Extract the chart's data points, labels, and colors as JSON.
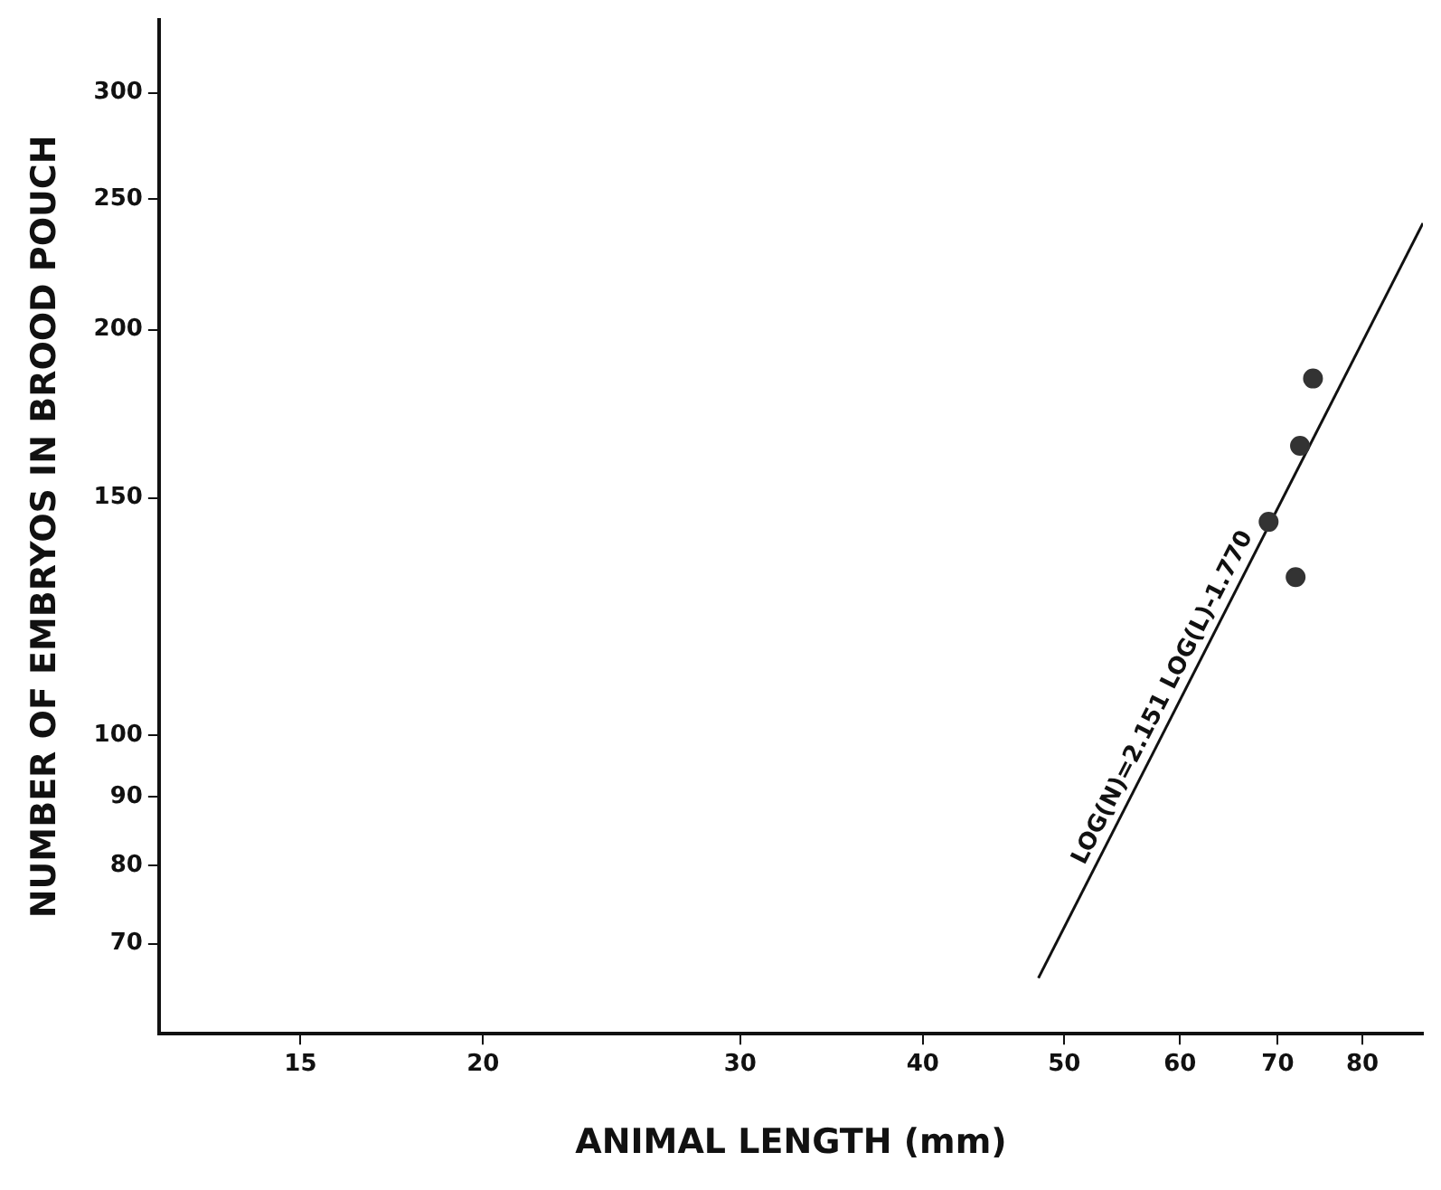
{
  "chart_data": {
    "type": "scatter",
    "xlabel": "ANIMAL LENGTH (mm)",
    "ylabel": "NUMBER OF EMBRYOS IN BROOD POUCH",
    "log": "xy",
    "grid": false,
    "legend": false,
    "marker": "circle",
    "xlim": [
      12,
      88
    ],
    "ylim": [
      60,
      340
    ],
    "xticks": [
      15,
      20,
      30,
      40,
      50,
      60,
      70,
      80
    ],
    "yticks": [
      70,
      80,
      90,
      100,
      150,
      200,
      250,
      300
    ],
    "series": [
      {
        "type": "scatter",
        "color": "#333333",
        "x": [
          74,
          72.5,
          69,
          72
        ],
        "values": [
          184,
          164,
          144,
          131
        ]
      },
      {
        "type": "line",
        "color": "#111111",
        "marker": "none",
        "x": [
          48,
          88
        ],
        "values": [
          66,
          240
        ]
      }
    ],
    "annotations": [
      {
        "text": "LOG(N)=2.151 LOG(L)-1.770",
        "x": 60,
        "y": 105
      }
    ]
  }
}
